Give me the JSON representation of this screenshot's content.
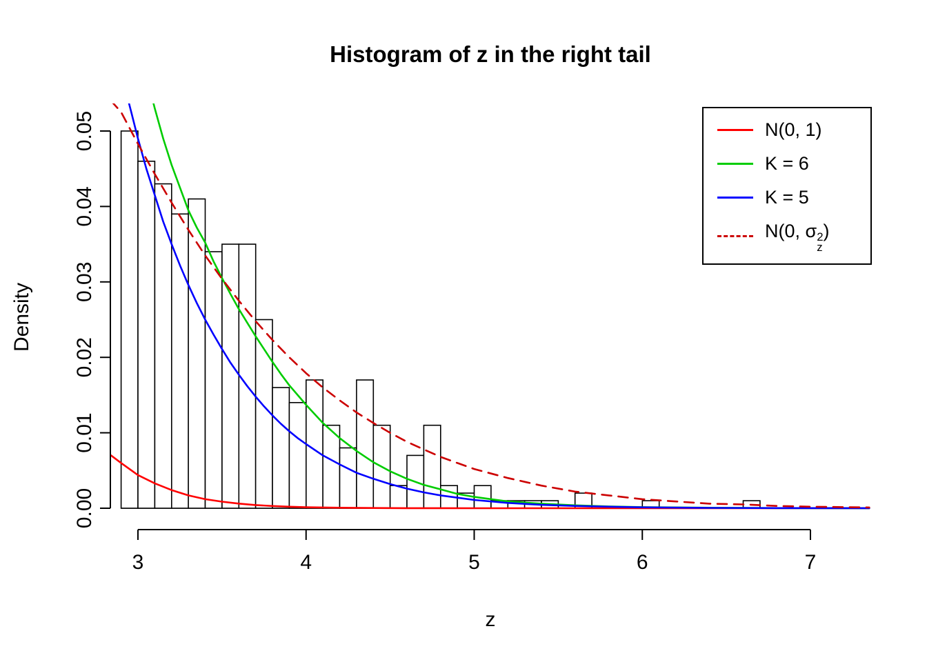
{
  "chart_data": {
    "type": "bar",
    "subtype": "histogram-with-density-curves",
    "title": "Histogram of z in the right tail",
    "xlabel": "z",
    "ylabel": "Density",
    "xlim": [
      2.83,
      7.36
    ],
    "ylim": [
      0,
      0.0537
    ],
    "grid": false,
    "x_ticks": [
      3,
      4,
      5,
      6,
      7
    ],
    "x_tick_labels": [
      "3",
      "4",
      "5",
      "6",
      "7"
    ],
    "y_ticks": [
      0,
      0.01,
      0.02,
      0.03,
      0.04,
      0.05
    ],
    "y_tick_labels": [
      "0.00",
      "0.01",
      "0.02",
      "0.03",
      "0.04",
      "0.05"
    ],
    "histogram": {
      "bin_start": 2.9,
      "bin_width": 0.1,
      "bar_fill": "#ffffff",
      "bar_stroke": "#000000",
      "densities": [
        0.05,
        0.046,
        0.043,
        0.039,
        0.041,
        0.034,
        0.035,
        0.035,
        0.025,
        0.016,
        0.014,
        0.017,
        0.011,
        0.008,
        0.017,
        0.011,
        0.003,
        0.007,
        0.011,
        0.003,
        0.002,
        0.003,
        0.001,
        0.001,
        0.001,
        0.001,
        0,
        0.002,
        0,
        0,
        0,
        0.001,
        0,
        0,
        0,
        0,
        0,
        0.001
      ]
    },
    "series": [
      {
        "id": "n01",
        "name": "N(0, 1)",
        "color": "#ff0000",
        "dash": false,
        "points": [
          [
            2.84,
            0.007
          ],
          [
            2.9,
            0.006
          ],
          [
            3.0,
            0.0044
          ],
          [
            3.1,
            0.0033
          ],
          [
            3.2,
            0.0024
          ],
          [
            3.3,
            0.0017
          ],
          [
            3.4,
            0.0012
          ],
          [
            3.5,
            0.00087
          ],
          [
            3.6,
            0.00061
          ],
          [
            3.7,
            0.00042
          ],
          [
            3.8,
            0.00029
          ],
          [
            3.9,
            0.0002
          ],
          [
            4.0,
            0.00013
          ],
          [
            4.2,
            6e-05
          ],
          [
            4.4,
            2.5e-05
          ],
          [
            4.6,
            1e-05
          ],
          [
            5.0,
            2e-06
          ],
          [
            5.5,
            0
          ],
          [
            6.0,
            0
          ],
          [
            7.35,
            0
          ]
        ]
      },
      {
        "id": "k6",
        "name": "K = 6",
        "color": "#00cc00",
        "dash": false,
        "points": [
          [
            3.02,
            0.06
          ],
          [
            3.06,
            0.0565
          ],
          [
            3.1,
            0.053
          ],
          [
            3.15,
            0.049
          ],
          [
            3.2,
            0.0455
          ],
          [
            3.25,
            0.0425
          ],
          [
            3.3,
            0.0395
          ],
          [
            3.35,
            0.0372
          ],
          [
            3.4,
            0.0352
          ],
          [
            3.45,
            0.0327
          ],
          [
            3.5,
            0.0305
          ],
          [
            3.55,
            0.0284
          ],
          [
            3.6,
            0.0264
          ],
          [
            3.65,
            0.0246
          ],
          [
            3.7,
            0.0228
          ],
          [
            3.75,
            0.0211
          ],
          [
            3.8,
            0.0194
          ],
          [
            3.85,
            0.0178
          ],
          [
            3.9,
            0.0163
          ],
          [
            3.95,
            0.015
          ],
          [
            4.0,
            0.0137
          ],
          [
            4.1,
            0.0113
          ],
          [
            4.2,
            0.0093
          ],
          [
            4.3,
            0.0076
          ],
          [
            4.4,
            0.0061
          ],
          [
            4.5,
            0.0049
          ],
          [
            4.6,
            0.0039
          ],
          [
            4.7,
            0.0031
          ],
          [
            4.8,
            0.0025
          ],
          [
            4.9,
            0.0019
          ],
          [
            5.0,
            0.0015
          ],
          [
            5.2,
            0.0009
          ],
          [
            5.4,
            0.0006
          ],
          [
            5.6,
            0.00038
          ],
          [
            5.8,
            0.00024
          ],
          [
            6.0,
            0.00015
          ],
          [
            6.4,
            6e-05
          ],
          [
            6.8,
            2e-05
          ],
          [
            7.35,
            1e-05
          ]
        ]
      },
      {
        "id": "k5",
        "name": "K = 5",
        "color": "#0000ff",
        "dash": false,
        "points": [
          [
            2.88,
            0.06
          ],
          [
            2.92,
            0.056
          ],
          [
            2.96,
            0.0525
          ],
          [
            3.0,
            0.049
          ],
          [
            3.05,
            0.045
          ],
          [
            3.1,
            0.0415
          ],
          [
            3.15,
            0.038
          ],
          [
            3.2,
            0.035
          ],
          [
            3.25,
            0.0322
          ],
          [
            3.3,
            0.0296
          ],
          [
            3.35,
            0.0272
          ],
          [
            3.4,
            0.025
          ],
          [
            3.45,
            0.023
          ],
          [
            3.5,
            0.0211
          ],
          [
            3.55,
            0.0193
          ],
          [
            3.6,
            0.0177
          ],
          [
            3.65,
            0.0162
          ],
          [
            3.7,
            0.0148
          ],
          [
            3.75,
            0.0135
          ],
          [
            3.8,
            0.0123
          ],
          [
            3.85,
            0.0112
          ],
          [
            3.9,
            0.0102
          ],
          [
            3.95,
            0.0093
          ],
          [
            4.0,
            0.0085
          ],
          [
            4.1,
            0.007
          ],
          [
            4.2,
            0.0058
          ],
          [
            4.3,
            0.0047
          ],
          [
            4.4,
            0.0039
          ],
          [
            4.5,
            0.0032
          ],
          [
            4.6,
            0.0026
          ],
          [
            4.7,
            0.0021
          ],
          [
            4.8,
            0.0017
          ],
          [
            4.9,
            0.0014
          ],
          [
            5.0,
            0.0011
          ],
          [
            5.2,
            0.0007
          ],
          [
            5.4,
            0.00045
          ],
          [
            5.6,
            0.0003
          ],
          [
            5.8,
            0.0002
          ],
          [
            6.0,
            0.00012
          ],
          [
            6.4,
            5e-05
          ],
          [
            6.8,
            2e-05
          ],
          [
            7.35,
            1e-05
          ]
        ]
      },
      {
        "id": "n0sigma",
        "name": "N(0, sigma_z^2)",
        "color": "#cc0000",
        "dash": true,
        "points": [
          [
            2.84,
            0.054
          ],
          [
            2.9,
            0.0525
          ],
          [
            3.0,
            0.0483
          ],
          [
            3.1,
            0.0443
          ],
          [
            3.2,
            0.0405
          ],
          [
            3.3,
            0.0369
          ],
          [
            3.4,
            0.0335
          ],
          [
            3.5,
            0.0304
          ],
          [
            3.6,
            0.0275
          ],
          [
            3.7,
            0.0248
          ],
          [
            3.8,
            0.0223
          ],
          [
            3.9,
            0.02
          ],
          [
            4.0,
            0.0179
          ],
          [
            4.1,
            0.016
          ],
          [
            4.2,
            0.0143
          ],
          [
            4.3,
            0.0127
          ],
          [
            4.4,
            0.0113
          ],
          [
            4.5,
            0.01
          ],
          [
            4.6,
            0.0088
          ],
          [
            4.7,
            0.0078
          ],
          [
            4.8,
            0.0068
          ],
          [
            4.9,
            0.006
          ],
          [
            5.0,
            0.0052
          ],
          [
            5.2,
            0.004
          ],
          [
            5.4,
            0.003
          ],
          [
            5.6,
            0.0022
          ],
          [
            5.8,
            0.0017
          ],
          [
            6.0,
            0.0012
          ],
          [
            6.2,
            0.0009
          ],
          [
            6.4,
            0.0006
          ],
          [
            6.6,
            0.0005
          ],
          [
            6.8,
            0.0003
          ],
          [
            7.0,
            0.0002
          ],
          [
            7.35,
            0.0001
          ]
        ]
      }
    ],
    "legend": {
      "position": "top-right",
      "entries": [
        {
          "label": "N(0, 1)",
          "color": "#ff0000",
          "dash": false
        },
        {
          "label": "K = 6",
          "color": "#00cc00",
          "dash": false
        },
        {
          "label": "K = 5",
          "color": "#0000ff",
          "dash": false
        },
        {
          "label": "N(0, sigma_z^2)",
          "color": "#cc0000",
          "dash": true,
          "rich": {
            "prefix": "N(0, ",
            "base": "σ",
            "sup": "2",
            "sub": "z",
            "suffix": ")"
          }
        }
      ]
    }
  }
}
